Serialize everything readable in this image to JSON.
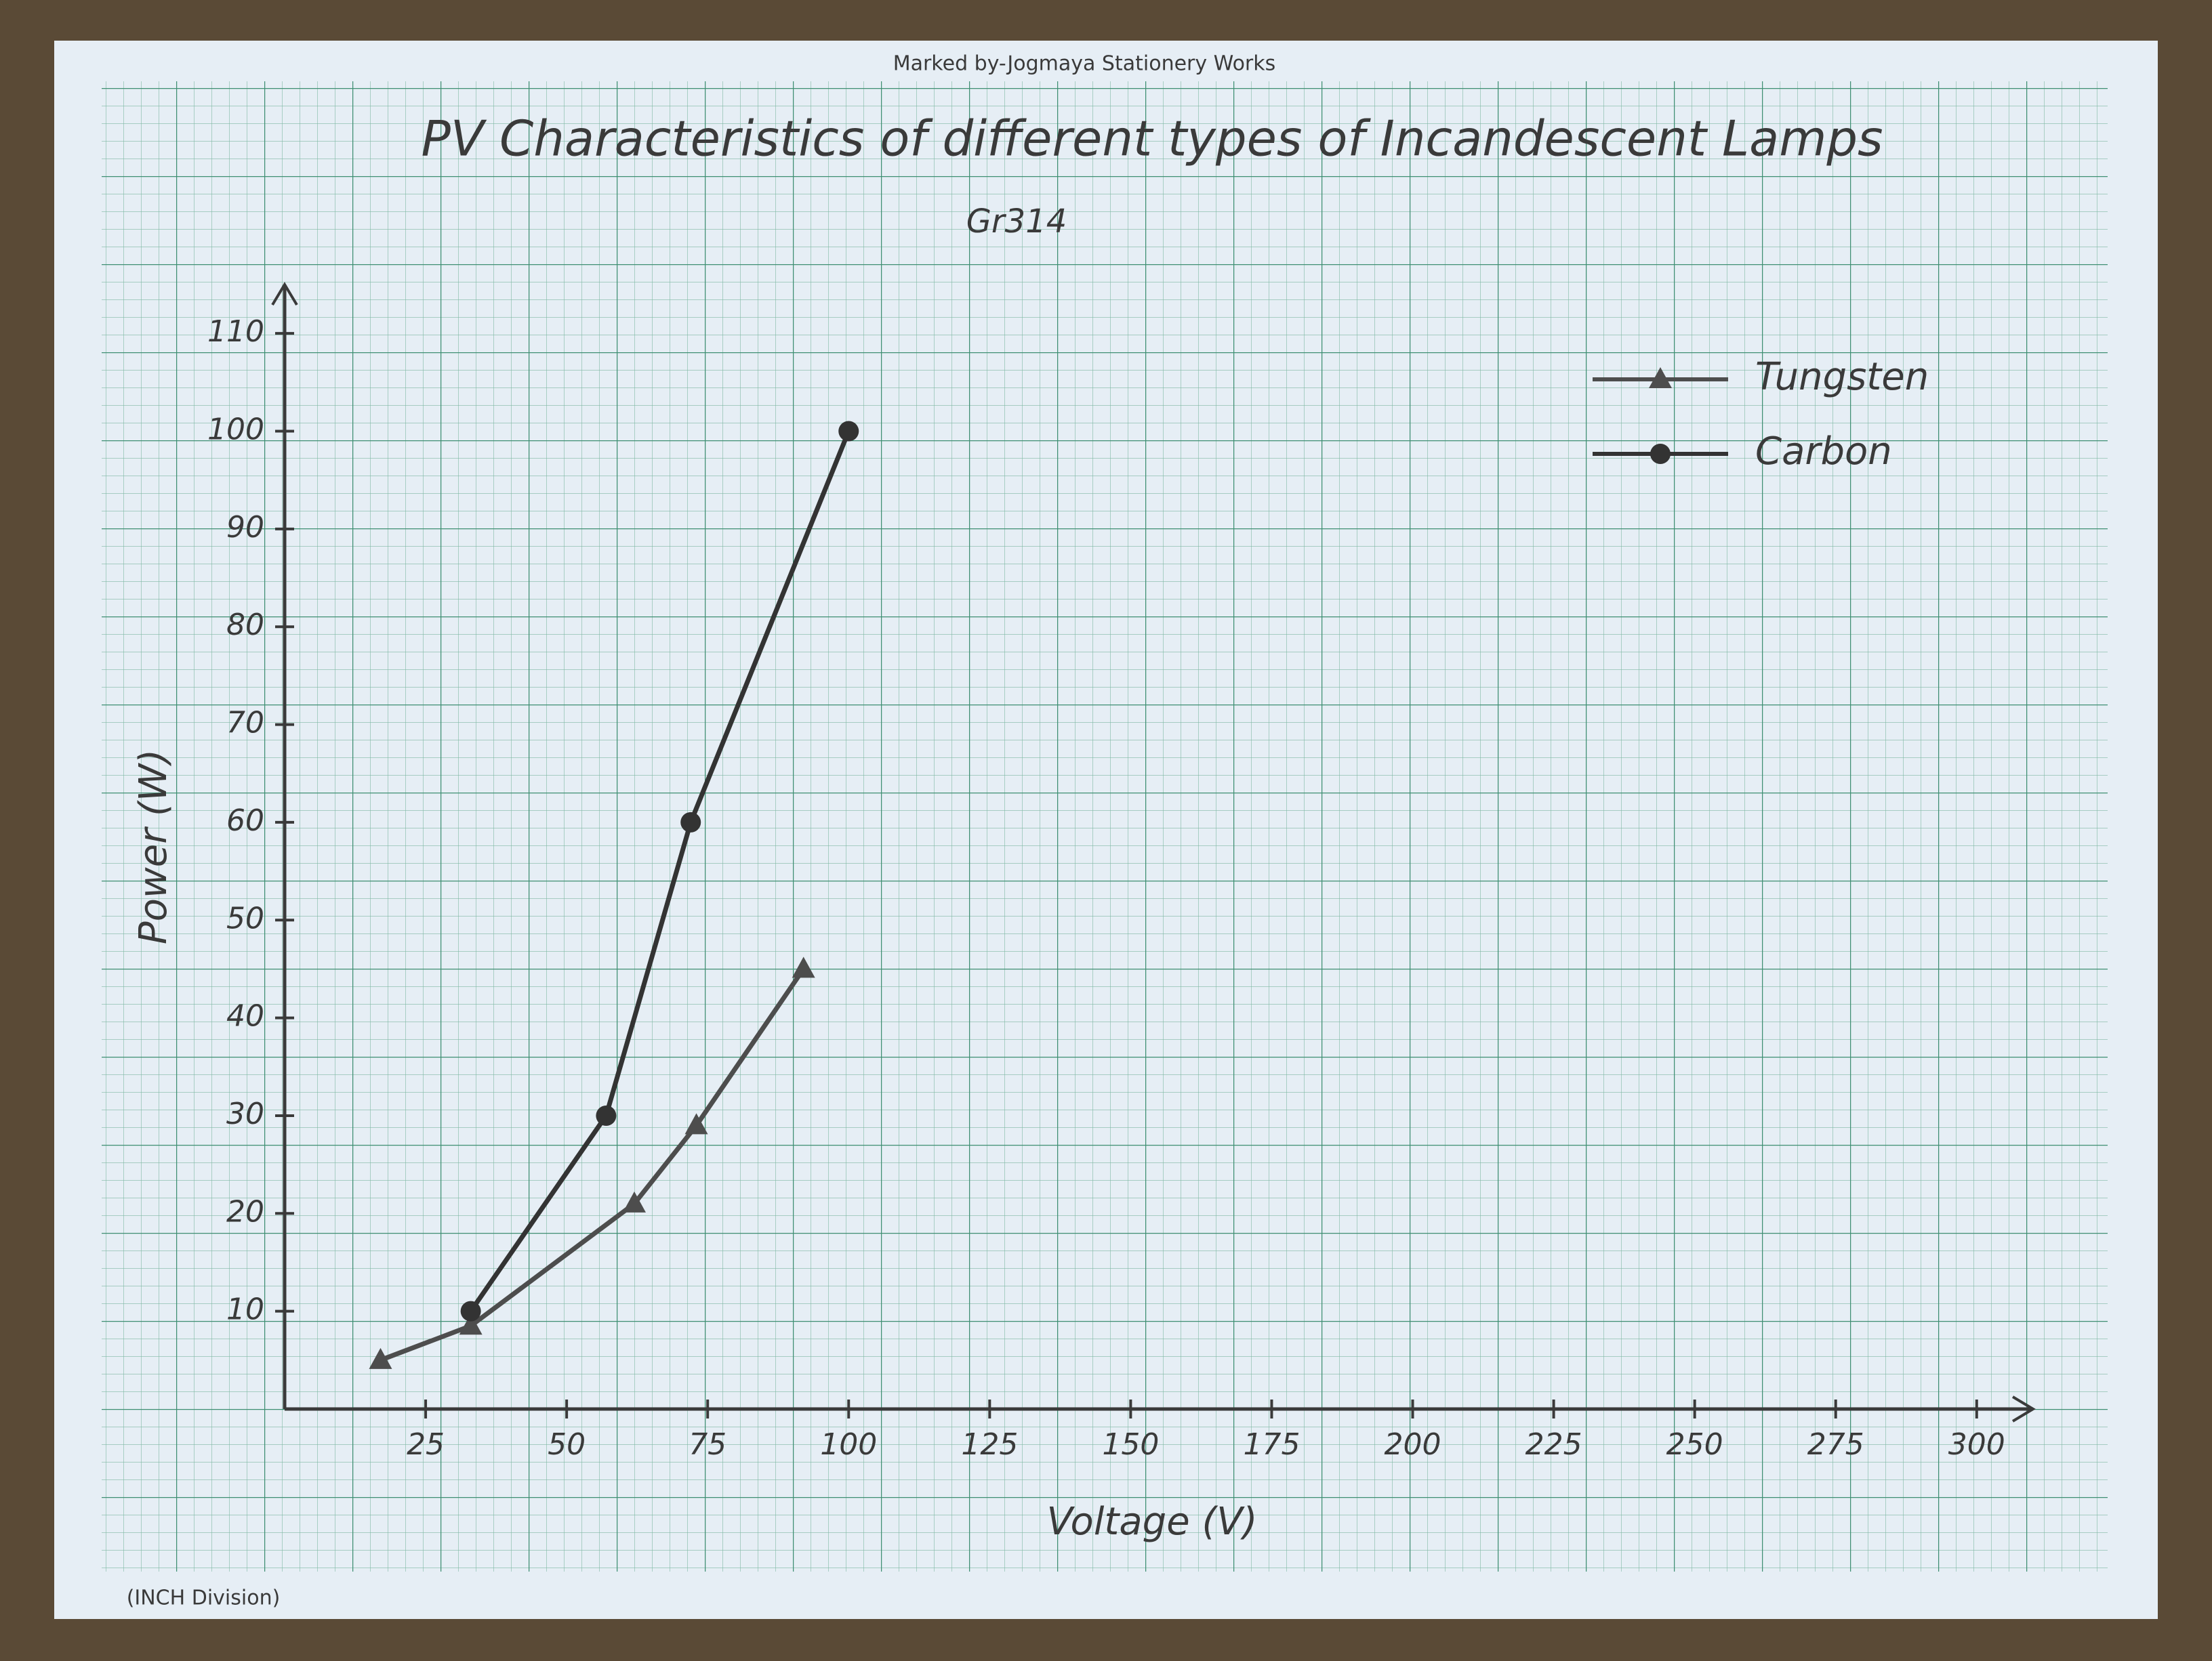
{
  "chart_data": {
    "type": "line",
    "title": "PV Characteristics of different types of Incandescent Lamps",
    "x_label": "Voltage (V)",
    "y_label": "Power (W)",
    "annotations": [
      "Gr314",
      "Marked by-Jogmaya Stationery Works",
      "(INCH Division)"
    ],
    "xlim": [
      0,
      310
    ],
    "xticks": [
      25,
      50,
      75,
      100,
      125,
      150,
      175,
      200,
      225,
      250,
      275,
      300
    ],
    "ylim": [
      0,
      115
    ],
    "yticks": [
      10,
      20,
      30,
      40,
      50,
      60,
      70,
      80,
      90,
      100,
      110
    ],
    "grid": true,
    "legend": "top-right",
    "series": [
      {
        "name": "Tungsten",
        "color": "#4d4d4d",
        "marker": "triangle",
        "x": [
          17,
          33,
          62,
          73,
          92
        ],
        "values": [
          5,
          8.5,
          21,
          29,
          45
        ]
      },
      {
        "name": "Carbon",
        "color": "#333333",
        "marker": "circle",
        "x": [
          33,
          57,
          72,
          100
        ],
        "values": [
          10,
          30,
          60,
          100
        ]
      }
    ]
  }
}
